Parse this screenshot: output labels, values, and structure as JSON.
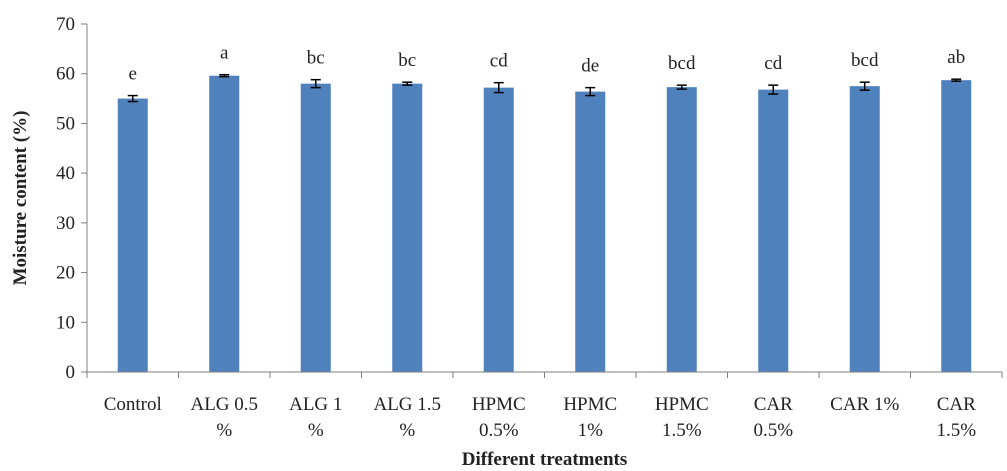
{
  "chart_data": {
    "type": "bar",
    "title": "",
    "xlabel": "Different treatments",
    "ylabel": "Moisture content (%)",
    "ylim": [
      0,
      70
    ],
    "yticks": [
      "0",
      "10",
      "20",
      "30",
      "40",
      "50",
      "60",
      "70"
    ],
    "grid": false,
    "legend": "none",
    "bar_color": "#4f81bd",
    "categories": [
      [
        "Control"
      ],
      [
        "ALG 0.5",
        "%"
      ],
      [
        "ALG 1",
        "%"
      ],
      [
        "ALG 1.5",
        "%"
      ],
      [
        "HPMC",
        "0.5%"
      ],
      [
        "HPMC",
        "1%"
      ],
      [
        "HPMC",
        "1.5%"
      ],
      [
        "CAR",
        "0.5%"
      ],
      [
        "CAR 1%"
      ],
      [
        "CAR",
        "1.5%"
      ]
    ],
    "values": [
      55.0,
      59.6,
      58.0,
      58.0,
      57.2,
      56.4,
      57.3,
      56.8,
      57.5,
      58.7
    ],
    "errors": [
      0.6,
      0.2,
      0.8,
      0.3,
      1.0,
      0.8,
      0.4,
      0.9,
      0.8,
      0.2
    ],
    "significance_letters": [
      "e",
      "a",
      "bc",
      "bc",
      "cd",
      "de",
      "bcd",
      "cd",
      "bcd",
      "ab"
    ]
  }
}
